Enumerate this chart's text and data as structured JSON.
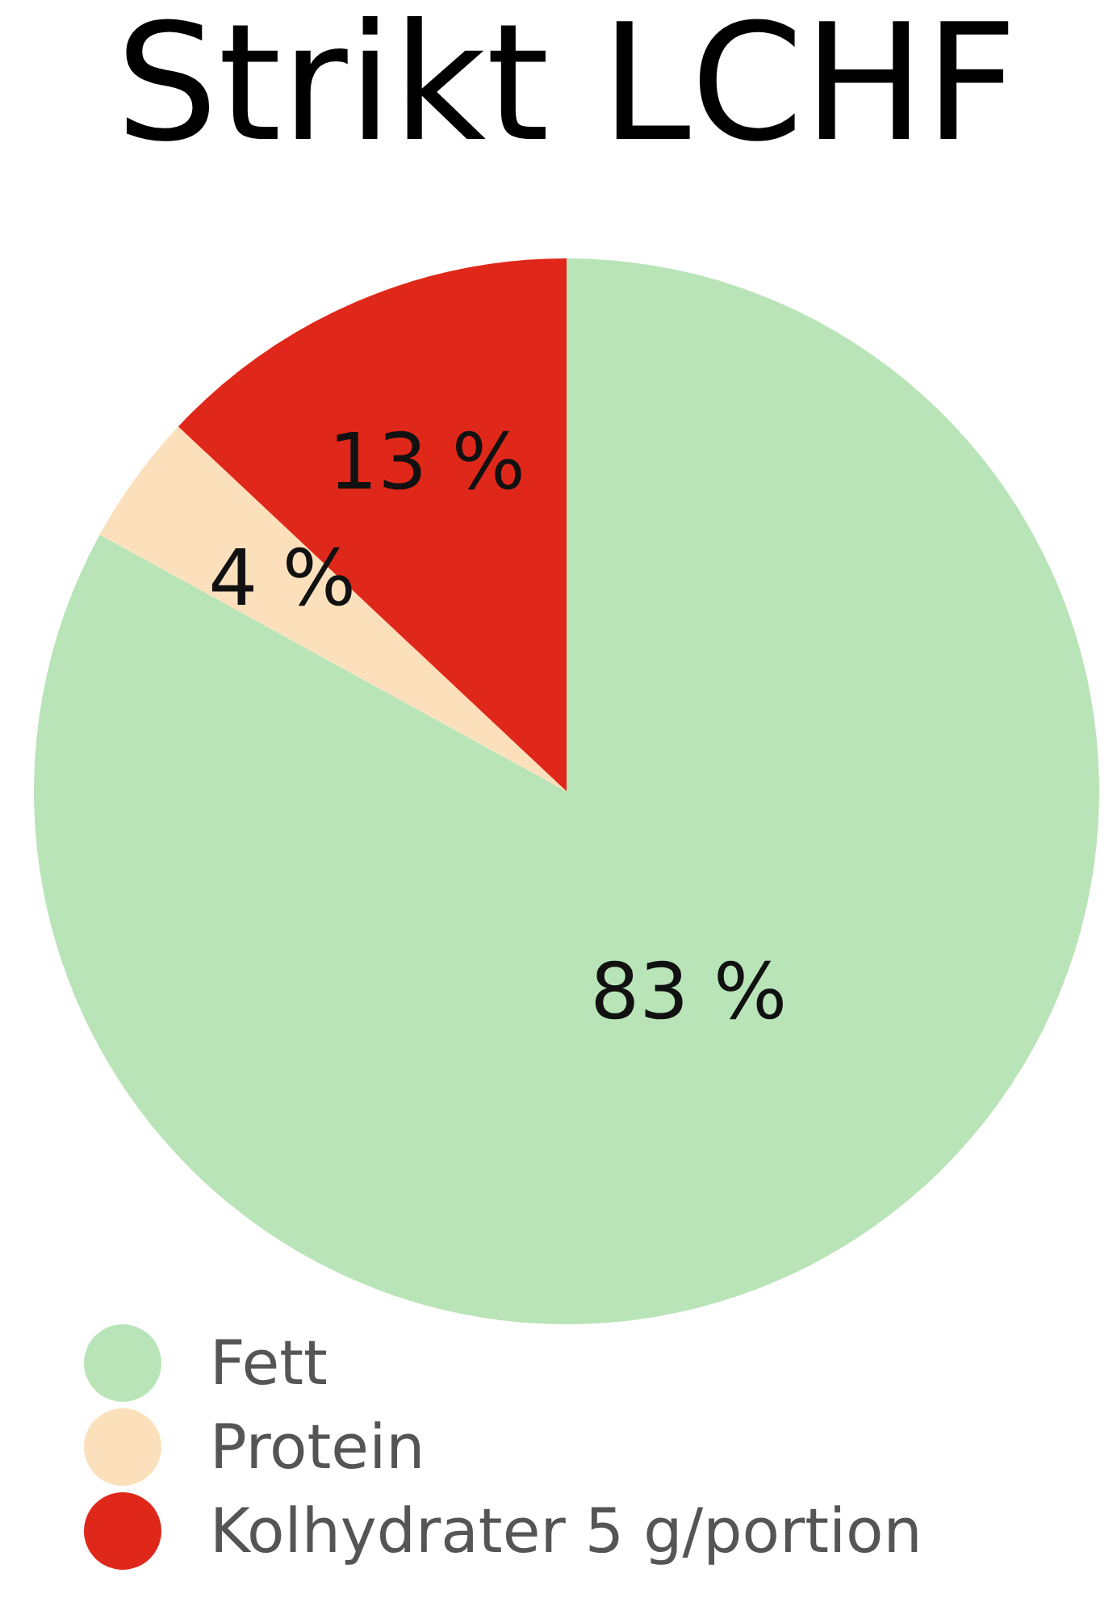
{
  "chart_data": {
    "type": "pie",
    "title": "Strikt LCHF",
    "categories": [
      "Fett",
      "Protein",
      "Kolhydrater 5 g/portion"
    ],
    "values": [
      83,
      4,
      13
    ],
    "colors": [
      "#b9e4b7",
      "#fce0bb",
      "#e0281a"
    ],
    "value_labels": [
      "83 %",
      "4 %",
      "13 %"
    ],
    "legend": "bottom left"
  }
}
